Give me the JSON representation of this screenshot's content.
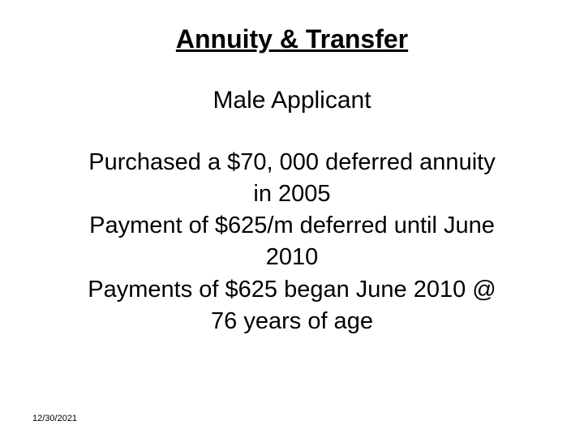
{
  "slide": {
    "title": "Annuity & Transfer",
    "subtitle": "Male Applicant",
    "line1": "Purchased a $70, 000 deferred annuity",
    "line2": "in 2005",
    "line3": "Payment of $625/m deferred until June",
    "line4": "2010",
    "line5": "Payments of $625 began June 2010 @",
    "line6": "76 years of age",
    "footer_date": "12/30/2021"
  },
  "colors": {
    "background": "#ffffff",
    "text": "#000000"
  },
  "typography": {
    "title_fontsize": 32,
    "subtitle_fontsize": 30,
    "body_fontsize": 29,
    "footer_fontsize": 11,
    "font_family": "Arial"
  }
}
